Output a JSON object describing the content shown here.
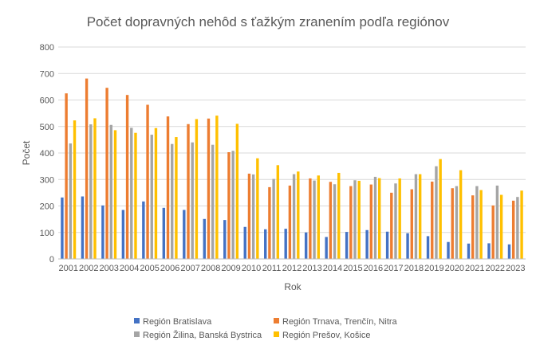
{
  "chart_data": {
    "type": "bar",
    "title": "Počet dopravných nehôd s ťažkým zranením podľa regiónov",
    "xlabel": "Rok",
    "ylabel": "Počet",
    "ylim": [
      0,
      800
    ],
    "yticks": [
      0,
      100,
      200,
      300,
      400,
      500,
      600,
      700,
      800
    ],
    "grid": true,
    "legend": "bottom",
    "categories": [
      "2001",
      "2002",
      "2003",
      "2004",
      "2005",
      "2006",
      "2007",
      "2008",
      "2009",
      "2010",
      "2011",
      "2012",
      "2013",
      "2014",
      "2015",
      "2016",
      "2017",
      "2018",
      "2019",
      "2020",
      "2021",
      "2022",
      "2023"
    ],
    "series": [
      {
        "name": "Región Bratislava",
        "color": "#4472C4",
        "values": [
          232,
          236,
          202,
          185,
          217,
          193,
          185,
          151,
          147,
          121,
          112,
          114,
          100,
          83,
          102,
          109,
          103,
          97,
          86,
          64,
          58,
          59,
          55
        ]
      },
      {
        "name": "Región Trnava, Trenčín, Nitra",
        "color": "#ED7D31",
        "values": [
          625,
          681,
          646,
          619,
          582,
          538,
          509,
          530,
          403,
          322,
          271,
          277,
          304,
          291,
          275,
          281,
          250,
          263,
          292,
          267,
          240,
          202,
          220
        ]
      },
      {
        "name": "Región Žilina, Banská Bystrica",
        "color": "#A5A5A5",
        "values": [
          436,
          508,
          506,
          495,
          469,
          434,
          440,
          431,
          408,
          319,
          302,
          320,
          296,
          282,
          297,
          310,
          285,
          320,
          350,
          275,
          275,
          277,
          234
        ]
      },
      {
        "name": "Región Prešov, Košice",
        "color": "#FFC000",
        "values": [
          523,
          531,
          486,
          476,
          494,
          460,
          528,
          541,
          510,
          380,
          354,
          330,
          315,
          325,
          295,
          305,
          304,
          320,
          377,
          335,
          260,
          242,
          258
        ]
      }
    ]
  }
}
